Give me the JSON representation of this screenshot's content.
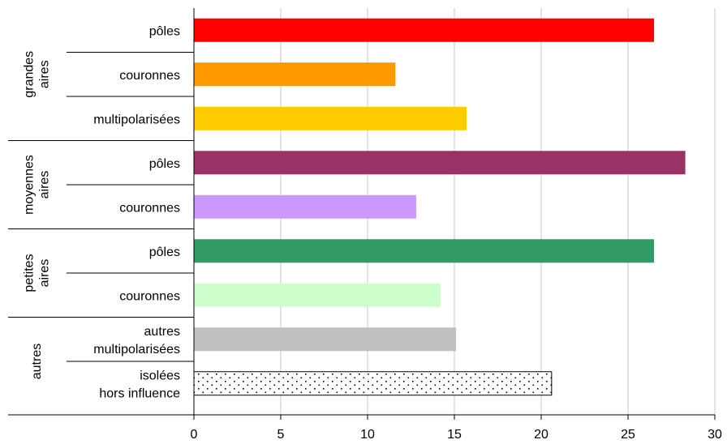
{
  "chart_data": {
    "type": "bar",
    "orientation": "horizontal",
    "title": "",
    "xlabel": "",
    "ylabel": "",
    "xlim": [
      0,
      30
    ],
    "xticks": [
      0,
      5,
      10,
      15,
      20,
      25,
      30
    ],
    "grid": true,
    "legend": "none",
    "groups": [
      {
        "label_lines": [
          "grandes",
          "aires"
        ],
        "bars": [
          {
            "label_lines": [
              "pôles"
            ],
            "value": 26.5,
            "color": "#ff0000"
          },
          {
            "label_lines": [
              "couronnes"
            ],
            "value": 11.6,
            "color": "#ff9900"
          },
          {
            "label_lines": [
              "multipolarisées"
            ],
            "value": 15.7,
            "color": "#ffcc00"
          }
        ]
      },
      {
        "label_lines": [
          "moyennes",
          "aires"
        ],
        "bars": [
          {
            "label_lines": [
              "pôles"
            ],
            "value": 28.3,
            "color": "#993366"
          },
          {
            "label_lines": [
              "couronnes"
            ],
            "value": 12.8,
            "color": "#cc99ff"
          }
        ]
      },
      {
        "label_lines": [
          "petites",
          "aires"
        ],
        "bars": [
          {
            "label_lines": [
              "pôles"
            ],
            "value": 26.5,
            "color": "#339966"
          },
          {
            "label_lines": [
              "couronnes"
            ],
            "value": 14.2,
            "color": "#ccffcc"
          }
        ]
      },
      {
        "label_lines": [
          "autres"
        ],
        "bars": [
          {
            "label_lines": [
              "autres",
              "multipolarisées"
            ],
            "value": 15.1,
            "color": "#c0c0c0"
          },
          {
            "label_lines": [
              "isolées",
              "hors influence"
            ],
            "value": 20.6,
            "color": "#ffffff",
            "pattern": "dots"
          }
        ]
      }
    ]
  }
}
